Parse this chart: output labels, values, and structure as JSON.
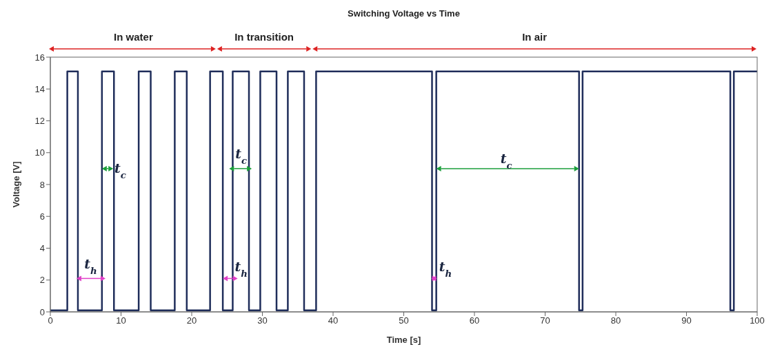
{
  "chart_data": {
    "type": "line",
    "title": "Switching Voltage vs Time",
    "xlabel": "Time [s]",
    "ylabel": "Voltage [V]",
    "x": [
      0,
      2.4,
      2.4,
      3.9,
      3.9,
      7.3,
      7.3,
      9.0,
      9.0,
      12.5,
      12.5,
      14.2,
      14.2,
      17.6,
      17.6,
      19.3,
      19.3,
      22.6,
      22.6,
      24.4,
      24.4,
      25.8,
      25.8,
      28.1,
      28.1,
      29.7,
      29.7,
      32.0,
      32.0,
      33.6,
      33.6,
      35.9,
      35.9,
      37.6,
      37.6,
      54.0,
      54.0,
      54.6,
      54.6,
      74.8,
      74.8,
      75.3,
      75.3,
      96.2,
      96.2,
      96.7,
      96.7,
      100
    ],
    "series": [
      {
        "color": "#1f2d5a",
        "values": [
          0.1,
          0.1,
          15.1,
          15.1,
          0.1,
          0.1,
          15.1,
          15.1,
          0.1,
          0.1,
          15.1,
          15.1,
          0.1,
          0.1,
          15.1,
          15.1,
          0.1,
          0.1,
          15.1,
          15.1,
          0.1,
          0.1,
          15.1,
          15.1,
          0.1,
          0.1,
          15.1,
          15.1,
          0.1,
          0.1,
          15.1,
          15.1,
          0.1,
          0.1,
          15.1,
          15.1,
          0.1,
          0.1,
          15.1,
          15.1,
          0.1,
          0.1,
          15.1,
          15.1,
          0.1,
          0.1,
          15.1,
          15.1
        ]
      }
    ],
    "xlim": [
      0,
      100
    ],
    "xticks": [
      0,
      10,
      20,
      30,
      40,
      50,
      60,
      70,
      80,
      90,
      100
    ],
    "ylim": [
      0,
      16
    ],
    "yticks": [
      0,
      2,
      4,
      6,
      8,
      10,
      12,
      14,
      16
    ],
    "grid": false,
    "marker": "none",
    "line_style": "solid",
    "annotations": [
      "In water",
      "In transition",
      "In air",
      "t$_{c}$",
      "t$_{c}$",
      "t$_{c}$",
      "t$_{h}$",
      "t$_{h}$",
      "t$_{h}$"
    ]
  }
}
